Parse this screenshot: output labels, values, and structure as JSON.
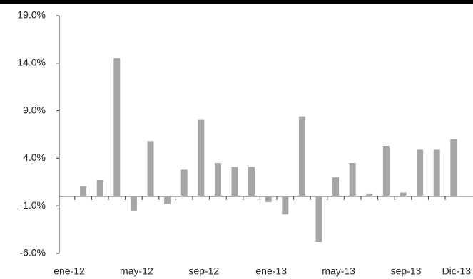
{
  "chart_data": {
    "type": "bar",
    "categories": [
      "ene-12",
      null,
      null,
      null,
      "may-12",
      null,
      null,
      null,
      "sep-12",
      null,
      null,
      null,
      "ene-13",
      null,
      null,
      null,
      "may-13",
      null,
      null,
      null,
      "sep-13",
      null,
      null,
      "Dic-13"
    ],
    "values": [
      null,
      1.1,
      1.7,
      14.5,
      -1.5,
      5.8,
      -0.8,
      2.8,
      8.1,
      3.5,
      3.1,
      3.1,
      -0.6,
      -1.9,
      8.4,
      -4.8,
      2.0,
      3.5,
      0.3,
      5.3,
      0.4,
      4.9,
      4.9,
      6.0
    ],
    "color": "#a6a6a6",
    "ylim": [
      -6,
      19
    ],
    "yticks": [
      {
        "value": -6,
        "label": "-6.0%"
      },
      {
        "value": -1,
        "label": "-1.0%"
      },
      {
        "value": 4,
        "label": "4.0%"
      },
      {
        "value": 9,
        "label": "9.0%"
      },
      {
        "value": 14,
        "label": "14.0%"
      },
      {
        "value": 19,
        "label": "19.0%"
      }
    ]
  }
}
